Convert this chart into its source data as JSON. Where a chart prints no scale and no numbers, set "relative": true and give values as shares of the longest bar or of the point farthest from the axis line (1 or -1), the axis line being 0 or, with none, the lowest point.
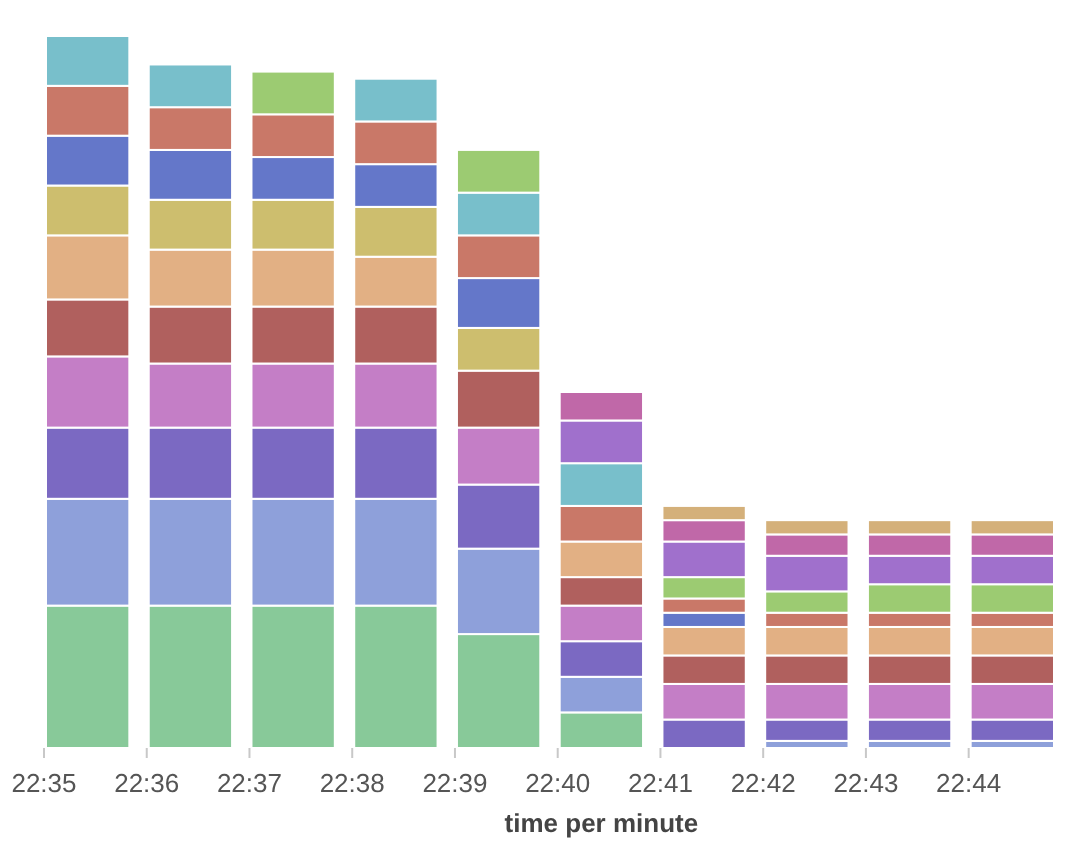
{
  "chart_data": {
    "type": "bar",
    "stacked": true,
    "relative": true,
    "xlabel": "time per minute",
    "categories": [
      "22:35",
      "22:36",
      "22:37",
      "22:38",
      "22:39",
      "22:40",
      "22:41",
      "22:42",
      "22:43",
      "22:44"
    ],
    "series": [
      {
        "color": "#88c999",
        "values": [
          0.2,
          0.2,
          0.2,
          0.2,
          0.16,
          0.05,
          null,
          null,
          null,
          null
        ]
      },
      {
        "color": "#8ea0da",
        "values": [
          0.15,
          0.15,
          0.15,
          0.15,
          0.12,
          0.05,
          null,
          0.01,
          0.01,
          0.01
        ]
      },
      {
        "color": "#7b69c2",
        "values": [
          0.1,
          0.1,
          0.1,
          0.1,
          0.09,
          0.05,
          0.04,
          0.03,
          0.03,
          0.03
        ]
      },
      {
        "color": "#c47ec6",
        "values": [
          0.1,
          0.09,
          0.09,
          0.09,
          0.08,
          0.05,
          0.05,
          0.05,
          0.05,
          0.05
        ]
      },
      {
        "color": "#b0605e",
        "values": [
          0.08,
          0.08,
          0.08,
          0.08,
          0.08,
          0.04,
          0.04,
          0.04,
          0.04,
          0.04
        ]
      },
      {
        "color": "#e2b084",
        "values": [
          0.09,
          0.08,
          0.08,
          0.07,
          null,
          0.05,
          0.04,
          0.04,
          0.04,
          0.04
        ]
      },
      {
        "color": "#cdbe6e",
        "values": [
          0.07,
          0.07,
          0.07,
          0.07,
          0.06,
          null,
          null,
          null,
          null,
          null
        ]
      },
      {
        "color": "#6477c9",
        "values": [
          0.07,
          0.07,
          0.06,
          0.06,
          0.07,
          null,
          0.02,
          null,
          null,
          null
        ]
      },
      {
        "color": "#c97868",
        "values": [
          0.07,
          0.06,
          0.06,
          0.06,
          0.06,
          0.05,
          0.02,
          0.02,
          0.02,
          0.02
        ]
      },
      {
        "color": "#78bfcb",
        "values": [
          0.07,
          0.06,
          null,
          0.06,
          0.06,
          0.06,
          null,
          null,
          null,
          null
        ]
      },
      {
        "color": "#9ccb72",
        "values": [
          null,
          null,
          0.06,
          null,
          0.06,
          null,
          0.03,
          0.03,
          0.04,
          0.04
        ]
      },
      {
        "color": "#a070cc",
        "values": [
          null,
          null,
          null,
          null,
          null,
          0.06,
          0.05,
          0.05,
          0.04,
          0.04
        ]
      },
      {
        "color": "#c068a8",
        "values": [
          null,
          null,
          null,
          null,
          null,
          0.04,
          0.03,
          0.03,
          0.03,
          0.03
        ]
      },
      {
        "color": "#d4b07a",
        "values": [
          null,
          null,
          null,
          null,
          null,
          null,
          0.02,
          0.02,
          0.02,
          0.02
        ]
      }
    ]
  }
}
